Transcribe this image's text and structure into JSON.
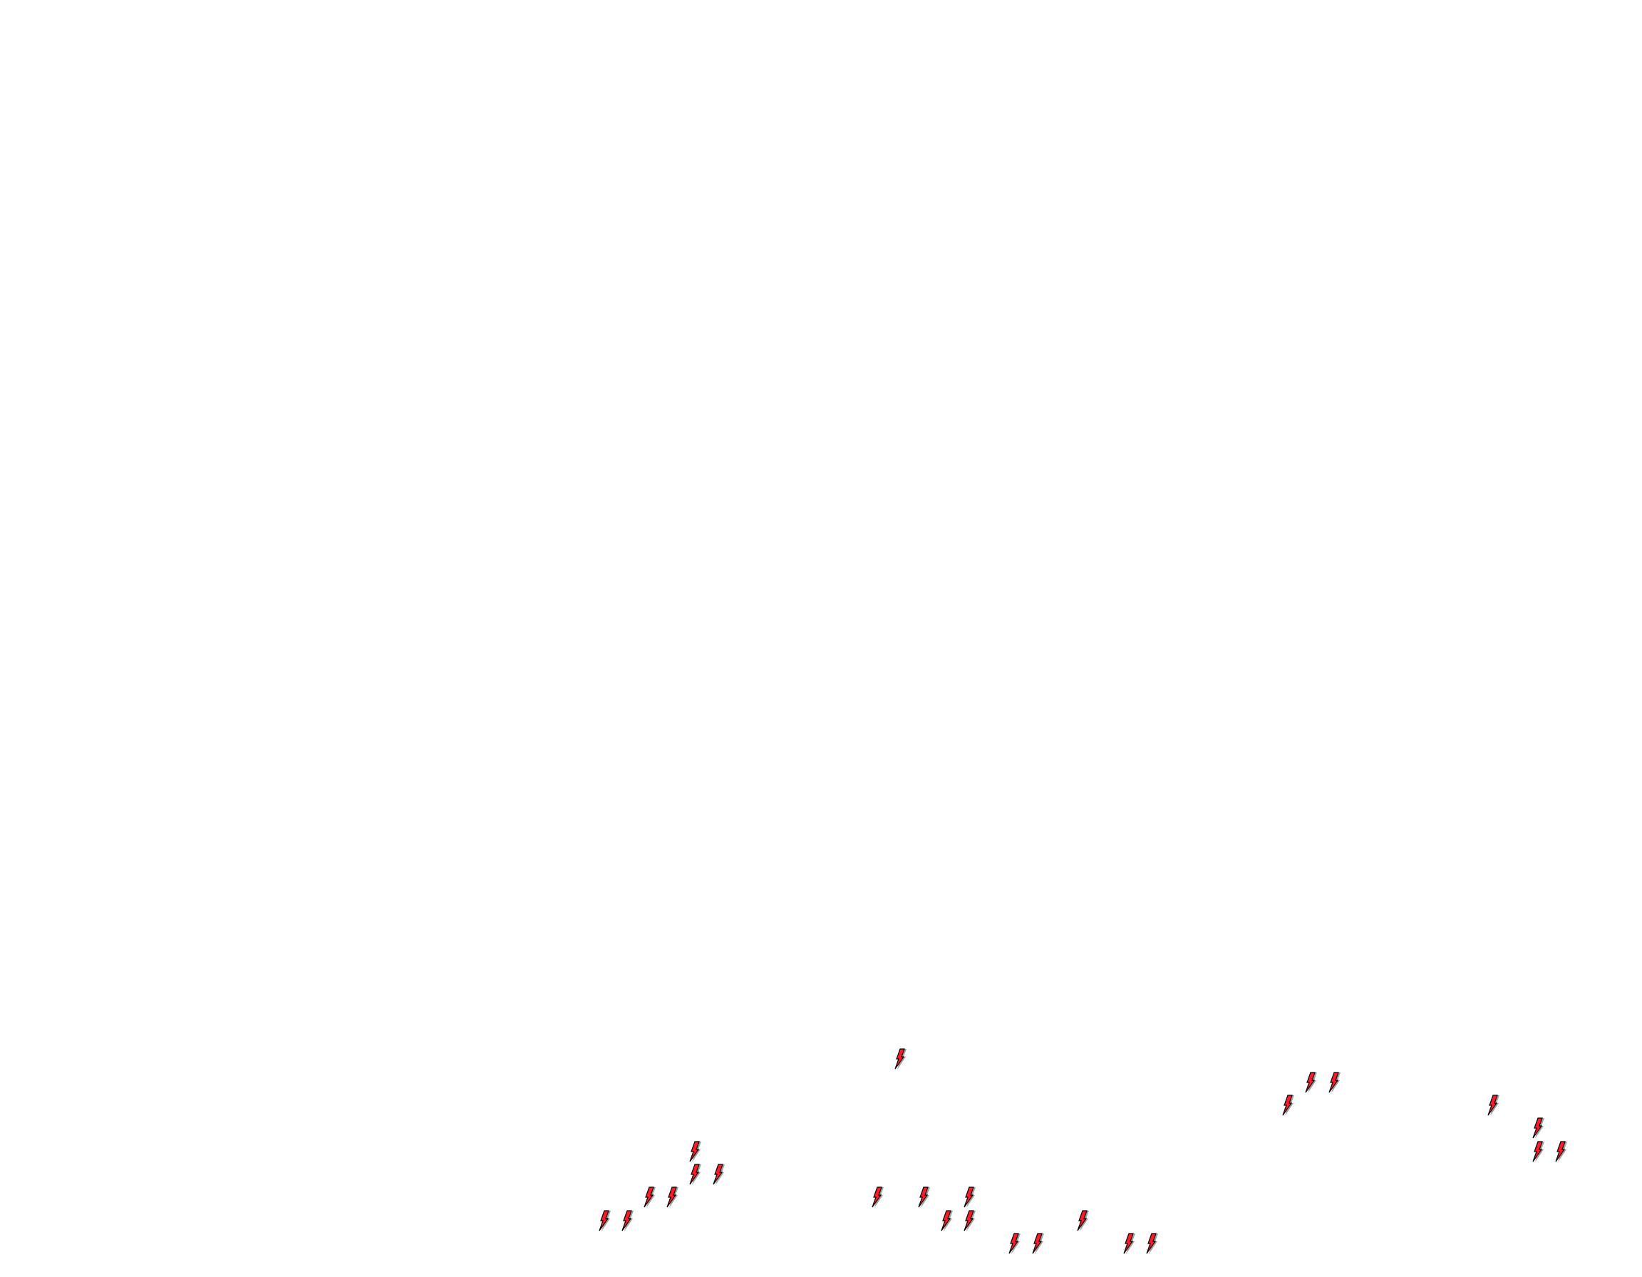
{
  "background_color": "#ffffff",
  "marker": {
    "icon": "lightning-bolt-icon",
    "fill_color": "#ff1a2a",
    "outline_color": "#000000",
    "shadow_color": "#a0a0a0",
    "count": 25
  }
}
